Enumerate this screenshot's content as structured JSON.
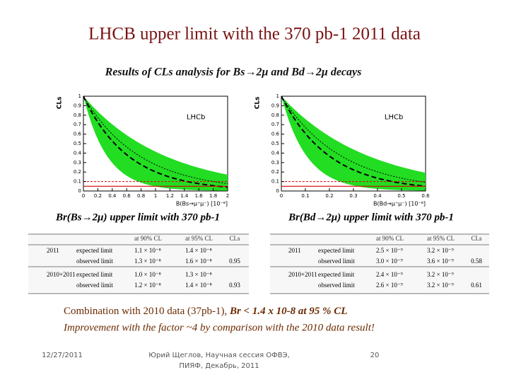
{
  "header": {
    "title": "LHCB  upper limit with the 370 pb-1 2011 data",
    "subtitle": "Results of  CLs analysis for Bs→2μ and Bd→2μ decays"
  },
  "plots": [
    {
      "y_label": "CLs",
      "logo": "LHCb",
      "x_label": "B(Bs→μ⁺μ⁻) [10⁻⁸]",
      "yticks": [
        0,
        0.1,
        0.2,
        0.3,
        0.4,
        0.5,
        0.6,
        0.7,
        0.8,
        0.9,
        1
      ],
      "xticks": [
        0,
        0.2,
        0.4,
        0.6,
        0.8,
        1,
        1.2,
        1.4,
        1.6,
        1.8,
        2
      ]
    },
    {
      "y_label": "CLs",
      "logo": "LHCb",
      "x_label": "B(Bd→μ⁺μ⁻) [10⁻⁸]",
      "yticks": [
        0,
        0.1,
        0.2,
        0.3,
        0.4,
        0.5,
        0.6,
        0.7,
        0.8,
        0.9,
        1
      ],
      "xticks": [
        0,
        0.1,
        0.2,
        0.3,
        0.4,
        0.5,
        0.6
      ]
    }
  ],
  "tables": [
    {
      "caption": "Br(Bs→2μ) upper limit with 370 pb-1",
      "columns": [
        "at 90% CL",
        "at 95% CL",
        "CLs"
      ],
      "rows": [
        {
          "period": "2011",
          "label": "expected limit",
          "cl90": "1.1 × 10⁻⁸",
          "cl95": "1.4 × 10⁻⁸"
        },
        {
          "label": "observed limit",
          "cl90": "1.3 × 10⁻⁸",
          "cl95": "1.6 × 10⁻⁸",
          "cls": "0.95"
        },
        {
          "period": "2010+2011",
          "label": "expected limit",
          "cl90": "1.0 × 10⁻⁸",
          "cl95": "1.3 × 10⁻⁸"
        },
        {
          "label": "observed limit",
          "cl90": "1.2 × 10⁻⁸",
          "cl95": "1.4 × 10⁻⁸",
          "cls": "0.93"
        }
      ]
    },
    {
      "caption": "Br(Bd→2μ) upper limit with 370 pb-1",
      "columns": [
        "at 90% CL",
        "at 95% CL",
        "CLs"
      ],
      "rows": [
        {
          "period": "2011",
          "label": "expected limit",
          "cl90": "2.5 × 10⁻⁹",
          "cl95": "3.2 × 10⁻⁹"
        },
        {
          "label": "observed limit",
          "cl90": "3.0 × 10⁻⁹",
          "cl95": "3.6 × 10⁻⁹",
          "cls": "0.58"
        },
        {
          "period": "2010+2011",
          "label": "expected limit",
          "cl90": "2.4 × 10⁻⁹",
          "cl95": "3.2 × 10⁻⁹"
        },
        {
          "label": "observed limit",
          "cl90": "2.6 × 10⁻⁹",
          "cl95": "3.2 × 10⁻⁹",
          "cls": "0.61"
        }
      ]
    }
  ],
  "conclusion": {
    "line1_plain": "Combination with 2010 data (37pb-1), ",
    "line1_bold": "Br <  1.4 x 10-8  at 95 % CL",
    "line2": "Improvement with the  factor  ~4  by comparison with  the 2010 data result!"
  },
  "footer": {
    "date": "12/27/2011",
    "author": [
      "Юрий Щеглов, Научная сессия ОФВЭ,",
      "ПИЯФ, Декабрь, 2011"
    ],
    "page": "20"
  }
}
